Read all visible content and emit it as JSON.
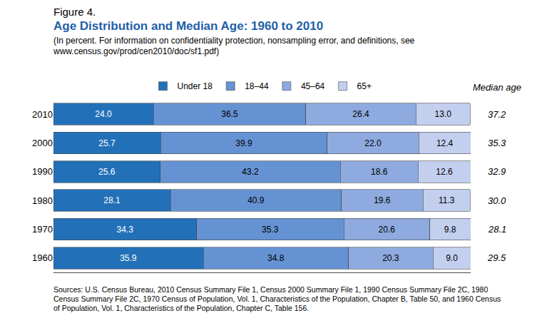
{
  "chart_data": {
    "type": "bar",
    "orientation": "horizontal",
    "stacked": true,
    "data_labels": true,
    "tick_labels": "y",
    "grid": false,
    "legend": "top",
    "label": "Figure 4.",
    "title": "Age Distribution and Median Age: 1960 to 2010",
    "subtitle": "(In percent. For information on confidentiality protection, nonsampling error, and definitions, see www.census.gov/prod/cen2010/doc/sf1.pdf)",
    "note": "Sources: U.S. Census Bureau, 2010 Census Summary File 1, Census 2000 Summary File 1, 1990 Census Summary File 2C, 1980 Census Summary File 2C, 1970 Census of Population, Vol. 1, Characteristics of the Population, Chapter B, Table 50, and 1960 Census of Population, Vol. 1, Characteristics of the Population, Chapter C, Table 156.",
    "categories": [
      "2010",
      "2000",
      "1990",
      "1980",
      "1970",
      "1960"
    ],
    "xlim": [
      0,
      100
    ],
    "xticks": [],
    "series": [
      {
        "name": "Under 18",
        "color": "#2271b8",
        "values": [
          24.0,
          25.7,
          25.6,
          28.1,
          34.3,
          35.9
        ],
        "value_labels": [
          "24.0",
          "25.7",
          "25.6",
          "28.1",
          "34.3",
          "35.9"
        ]
      },
      {
        "name": "18–44",
        "color": "#6592d3",
        "values": [
          36.5,
          39.9,
          43.2,
          40.9,
          35.3,
          34.8
        ],
        "value_labels": [
          "36.5",
          "39.9",
          "43.2",
          "40.9",
          "35.3",
          "34.8"
        ]
      },
      {
        "name": "45–64",
        "color": "#8eaadf",
        "values": [
          26.4,
          22.0,
          18.6,
          19.6,
          20.6,
          20.3
        ],
        "value_labels": [
          "26.4",
          "22.0",
          "18.6",
          "19.6",
          "20.6",
          "20.3"
        ]
      },
      {
        "name": "65+",
        "color": "#c3cfef",
        "values": [
          13.0,
          12.4,
          12.6,
          11.3,
          9.8,
          9.0
        ],
        "value_labels": [
          "13.0",
          "12.4",
          "12.6",
          "11.3",
          "9.8",
          "9.0"
        ]
      }
    ],
    "median_age": {
      "title": "Median age",
      "values": [
        37.2,
        35.3,
        32.9,
        30.0,
        28.1,
        29.5
      ],
      "value_labels": [
        "37.2",
        "35.3",
        "32.9",
        "30.0",
        "28.1",
        "29.5"
      ]
    }
  }
}
